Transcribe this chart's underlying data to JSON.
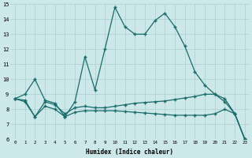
{
  "xlabel": "Humidex (Indice chaleur)",
  "bg_color": "#cce8e8",
  "grid_color": "#aacfcf",
  "line_color": "#1a6b6b",
  "xlim": [
    -0.5,
    23.5
  ],
  "ylim": [
    6,
    15
  ],
  "xticks": [
    0,
    1,
    2,
    3,
    4,
    5,
    6,
    7,
    8,
    9,
    10,
    11,
    12,
    13,
    14,
    15,
    16,
    17,
    18,
    19,
    20,
    21,
    22,
    23
  ],
  "yticks": [
    6,
    7,
    8,
    9,
    10,
    11,
    12,
    13,
    14,
    15
  ],
  "line1_x": [
    0,
    1,
    2,
    3,
    4,
    5,
    6,
    7,
    8,
    9,
    10,
    11,
    12,
    13,
    14,
    15,
    16,
    17,
    18,
    19,
    20,
    21,
    22,
    23
  ],
  "line1_y": [
    8.7,
    9.0,
    10.0,
    8.6,
    8.4,
    7.5,
    8.5,
    11.5,
    9.3,
    12.0,
    14.8,
    13.5,
    13.0,
    13.0,
    13.9,
    14.4,
    13.5,
    12.2,
    10.5,
    9.6,
    9.0,
    8.5,
    7.7,
    6.0
  ],
  "line2_x": [
    0,
    1,
    2,
    3,
    4,
    5,
    6,
    7,
    8,
    9,
    10,
    11,
    12,
    13,
    14,
    15,
    16,
    17,
    18,
    19,
    20,
    21,
    22,
    23
  ],
  "line2_y": [
    8.7,
    8.6,
    7.5,
    8.5,
    8.3,
    7.7,
    8.1,
    8.2,
    8.1,
    8.1,
    8.2,
    8.3,
    8.4,
    8.45,
    8.5,
    8.55,
    8.65,
    8.75,
    8.85,
    9.0,
    9.0,
    8.7,
    7.7,
    6.0
  ],
  "line3_x": [
    0,
    1,
    2,
    3,
    4,
    5,
    6,
    7,
    8,
    9,
    10,
    11,
    12,
    13,
    14,
    15,
    16,
    17,
    18,
    19,
    20,
    21,
    22,
    23
  ],
  "line3_y": [
    8.7,
    8.5,
    7.5,
    8.2,
    8.0,
    7.5,
    7.8,
    7.9,
    7.9,
    7.9,
    7.9,
    7.85,
    7.8,
    7.75,
    7.7,
    7.65,
    7.6,
    7.6,
    7.6,
    7.6,
    7.7,
    8.0,
    7.7,
    6.0
  ]
}
